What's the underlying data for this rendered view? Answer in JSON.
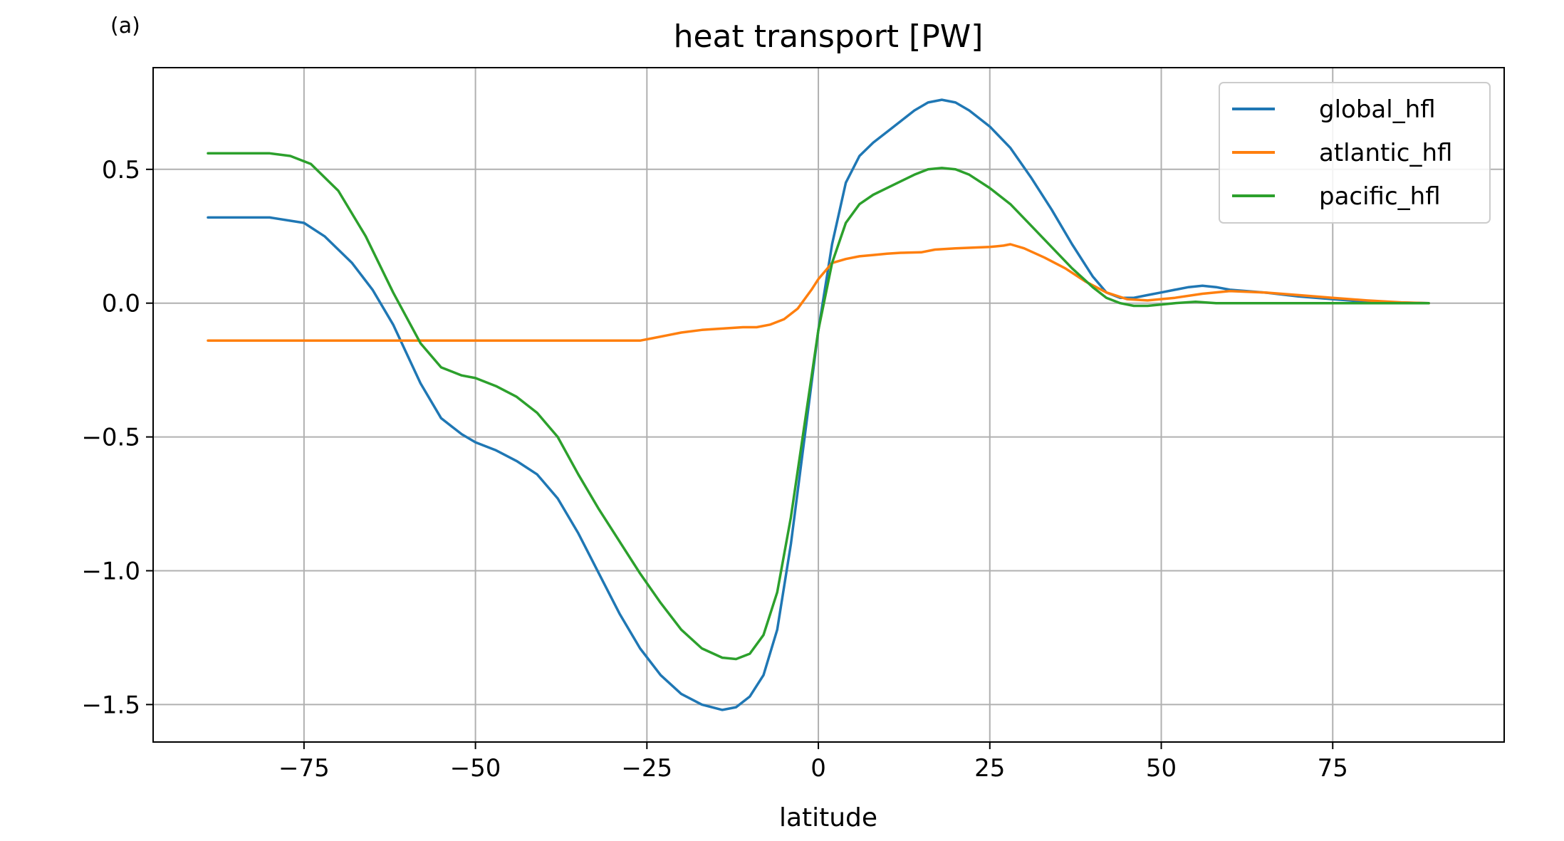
{
  "panel_label": "(a)",
  "chart_data": {
    "type": "line",
    "title": "heat transport [PW]",
    "xlabel": "latitude",
    "ylabel": "",
    "xlim": [
      -97,
      100
    ],
    "ylim": [
      -1.64,
      0.88
    ],
    "xticks": [
      -75,
      -50,
      -25,
      0,
      25,
      50,
      75
    ],
    "xtick_labels": [
      "−75",
      "−50",
      "−25",
      "0",
      "25",
      "50",
      "75"
    ],
    "yticks": [
      0.5,
      0.0,
      -0.5,
      -1.0,
      -1.5
    ],
    "ytick_labels": [
      "0.5",
      "0.0",
      "−0.5",
      "−1.0",
      "−1.5"
    ],
    "grid": true,
    "legend_position": "upper-right",
    "series": [
      {
        "name": "global_hfl",
        "color": "#1f77b4",
        "x": [
          -89,
          -80,
          -75,
          -72,
          -68,
          -65,
          -62,
          -58,
          -55,
          -52,
          -50,
          -47,
          -44,
          -41,
          -38,
          -35,
          -32,
          -29,
          -26,
          -23,
          -20,
          -17,
          -14,
          -12,
          -10,
          -8,
          -6,
          -4,
          -2,
          0,
          2,
          4,
          6,
          8,
          10,
          12,
          14,
          16,
          18,
          20,
          22,
          25,
          28,
          31,
          34,
          37,
          40,
          42,
          44,
          46,
          48,
          50,
          52,
          54,
          56,
          58,
          60,
          65,
          70,
          75,
          80,
          85,
          89
        ],
        "y": [
          0.32,
          0.32,
          0.3,
          0.25,
          0.15,
          0.05,
          -0.08,
          -0.3,
          -0.43,
          -0.49,
          -0.52,
          -0.55,
          -0.59,
          -0.64,
          -0.73,
          -0.86,
          -1.01,
          -1.16,
          -1.29,
          -1.39,
          -1.46,
          -1.5,
          -1.52,
          -1.51,
          -1.47,
          -1.39,
          -1.22,
          -0.9,
          -0.5,
          -0.1,
          0.22,
          0.45,
          0.55,
          0.6,
          0.64,
          0.68,
          0.72,
          0.75,
          0.76,
          0.75,
          0.72,
          0.66,
          0.58,
          0.47,
          0.35,
          0.22,
          0.1,
          0.04,
          0.02,
          0.02,
          0.03,
          0.04,
          0.05,
          0.06,
          0.065,
          0.06,
          0.05,
          0.04,
          0.025,
          0.015,
          0.005,
          0.002,
          0.0
        ]
      },
      {
        "name": "atlantic_hfl",
        "color": "#ff7f0e",
        "x": [
          -89,
          -80,
          -70,
          -60,
          -50,
          -40,
          -30,
          -26,
          -24,
          -22,
          -20,
          -17,
          -14,
          -11,
          -9,
          -7,
          -5,
          -3,
          -1,
          0,
          1,
          2,
          4,
          6,
          8,
          10,
          12,
          15,
          17,
          20,
          25,
          27,
          28,
          30,
          33,
          36,
          39,
          42,
          45,
          48,
          52,
          56,
          60,
          65,
          70,
          75,
          80,
          85,
          89
        ],
        "y": [
          -0.14,
          -0.14,
          -0.14,
          -0.14,
          -0.14,
          -0.14,
          -0.14,
          -0.14,
          -0.13,
          -0.12,
          -0.11,
          -0.1,
          -0.095,
          -0.09,
          -0.09,
          -0.08,
          -0.06,
          -0.02,
          0.05,
          0.09,
          0.12,
          0.15,
          0.165,
          0.175,
          0.18,
          0.185,
          0.188,
          0.19,
          0.2,
          0.205,
          0.21,
          0.215,
          0.22,
          0.205,
          0.17,
          0.13,
          0.08,
          0.04,
          0.015,
          0.01,
          0.02,
          0.035,
          0.045,
          0.04,
          0.03,
          0.02,
          0.01,
          0.003,
          0.0
        ]
      },
      {
        "name": "pacific_hfl",
        "color": "#2ca02c",
        "x": [
          -89,
          -80,
          -77,
          -74,
          -70,
          -66,
          -62,
          -58,
          -55,
          -52,
          -50,
          -47,
          -44,
          -41,
          -38,
          -35,
          -32,
          -29,
          -26,
          -23,
          -20,
          -17,
          -14,
          -12,
          -10,
          -8,
          -6,
          -4,
          -2,
          0,
          2,
          4,
          6,
          8,
          10,
          12,
          14,
          16,
          18,
          20,
          22,
          25,
          28,
          31,
          34,
          37,
          40,
          42,
          44,
          46,
          48,
          50,
          52,
          55,
          58,
          62,
          68,
          75,
          80,
          89
        ],
        "y": [
          0.56,
          0.56,
          0.55,
          0.52,
          0.42,
          0.25,
          0.04,
          -0.15,
          -0.24,
          -0.27,
          -0.28,
          -0.31,
          -0.35,
          -0.41,
          -0.5,
          -0.64,
          -0.77,
          -0.89,
          -1.01,
          -1.12,
          -1.22,
          -1.29,
          -1.325,
          -1.33,
          -1.31,
          -1.24,
          -1.08,
          -0.8,
          -0.45,
          -0.1,
          0.15,
          0.3,
          0.37,
          0.405,
          0.43,
          0.455,
          0.48,
          0.5,
          0.505,
          0.5,
          0.48,
          0.43,
          0.37,
          0.29,
          0.21,
          0.13,
          0.06,
          0.02,
          0.0,
          -0.01,
          -0.01,
          -0.005,
          0.0,
          0.005,
          0.0,
          0.0,
          0.0,
          0.0,
          0.0,
          0.0
        ]
      }
    ]
  }
}
